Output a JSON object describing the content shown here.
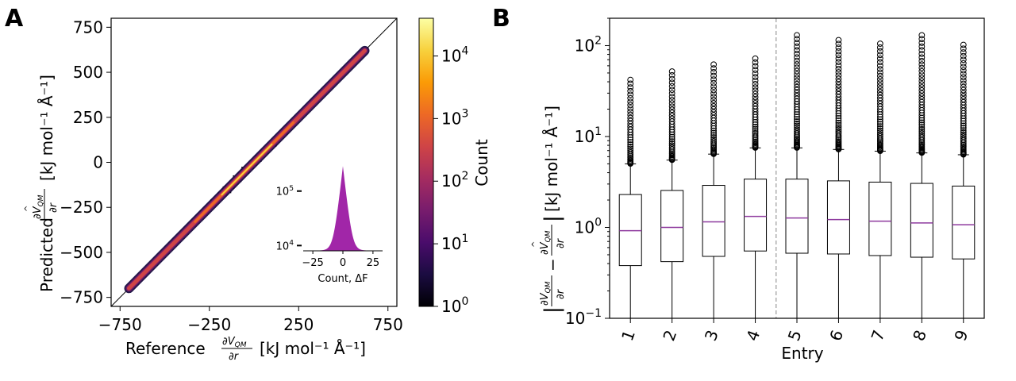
{
  "figure": {
    "panel_a": "A",
    "panel_b": "B"
  },
  "colors": {
    "inferno": [
      "#000004",
      "#1b0c41",
      "#4a0c6b",
      "#781c6d",
      "#a52c60",
      "#cf4446",
      "#ed6925",
      "#fb9b06",
      "#f7d13d",
      "#fcffa4"
    ],
    "violin": "#a126a8",
    "median": "#8e3a9e",
    "dashed": "#9a9a9a"
  },
  "labels": {
    "a_xlabel_prefix": "Reference",
    "a_xlabel_suffix": "[kJ mol⁻¹ Å⁻¹]",
    "a_ylabel_prefix": "Predicted",
    "a_ylabel_suffix": "[kJ mol⁻¹ Å⁻¹]",
    "frac_num_a": "∂V",
    "frac_sub": "QM",
    "frac_den": "∂r",
    "hat": "^",
    "colorbar_label": "Count",
    "b_xlabel": "Entry",
    "b_ylabel_suffix": "[kJ mol⁻¹ Å⁻¹]",
    "minus": "−",
    "bar": "|",
    "inset_xlabel": "Count, ΔF"
  },
  "chart_data": [
    {
      "type": "heatmap",
      "panel": "A",
      "description_text": "parity hexbin",
      "xlabel": "Reference ∂V_QM/∂r [kJ mol⁻¹ Å⁻¹]",
      "ylabel": "Predicted ∂V̂_QM/∂r [kJ mol⁻¹ Å⁻¹]",
      "xlim": [
        -800,
        800
      ],
      "ylim": [
        -800,
        800
      ],
      "xticks": [
        -750,
        -250,
        250,
        750
      ],
      "xtick_labels": [
        "−750",
        "−250",
        "250",
        "750"
      ],
      "yticks": [
        750,
        500,
        250,
        0,
        -250,
        -500,
        -750
      ],
      "ytick_labels": [
        "750",
        "500",
        "250",
        "0",
        "−250",
        "−500",
        "−750"
      ],
      "diagonal": [
        [
          -800,
          -800
        ],
        [
          800,
          800
        ]
      ],
      "data_range": [
        -700,
        620
      ],
      "colorbar": {
        "label": "Count",
        "scale": "log",
        "range": [
          1,
          40000
        ],
        "ticks": [
          1,
          10,
          100,
          1000,
          10000
        ],
        "tick_base": "10",
        "tick_exponents": [
          "0",
          "1",
          "2",
          "3",
          "4"
        ]
      }
    },
    {
      "type": "area",
      "panel": "A-inset",
      "xlabel": "Count, ΔF",
      "xticks": [
        -25,
        0,
        25
      ],
      "xtick_labels": [
        "−25",
        "0",
        "25"
      ],
      "xlim": [
        -33,
        33
      ],
      "ylim": [
        8000,
        300000
      ],
      "yscale": "log",
      "yticks": [
        10000,
        100000
      ],
      "ytick_base": "10",
      "ytick_exponents": [
        "4",
        "5"
      ],
      "distribution": "sharp peak centred at 0"
    },
    {
      "type": "box",
      "panel": "B",
      "categories": [
        "1",
        "2",
        "3",
        "4",
        "5",
        "6",
        "7",
        "8",
        "9"
      ],
      "xlabel": "Entry",
      "ylabel": "|∂V_QM/∂r − ∂V̂_QM/∂r| [kJ mol⁻¹ Å⁻¹]",
      "yscale": "log",
      "ylim": [
        0.1,
        200
      ],
      "yticks": [
        0.1,
        1,
        10,
        100
      ],
      "ytick_base": "10",
      "ytick_exponents": [
        "−1",
        "0",
        "1",
        "2"
      ],
      "divider_after_entry": "4",
      "stats": [
        {
          "entry": "1",
          "whisker_low": 0.1,
          "q1": 0.38,
          "median": 0.92,
          "q3": 2.3,
          "whisker_high": 5.0,
          "flier_max": 42
        },
        {
          "entry": "2",
          "whisker_low": 0.1,
          "q1": 0.42,
          "median": 1.0,
          "q3": 2.55,
          "whisker_high": 5.5,
          "flier_max": 52
        },
        {
          "entry": "3",
          "whisker_low": 0.1,
          "q1": 0.48,
          "median": 1.15,
          "q3": 2.9,
          "whisker_high": 6.4,
          "flier_max": 62
        },
        {
          "entry": "4",
          "whisker_low": 0.1,
          "q1": 0.55,
          "median": 1.32,
          "q3": 3.4,
          "whisker_high": 7.5,
          "flier_max": 72
        },
        {
          "entry": "5",
          "whisker_low": 0.1,
          "q1": 0.52,
          "median": 1.27,
          "q3": 3.4,
          "whisker_high": 7.5,
          "flier_max": 130
        },
        {
          "entry": "6",
          "whisker_low": 0.1,
          "q1": 0.51,
          "median": 1.22,
          "q3": 3.25,
          "whisker_high": 7.2,
          "flier_max": 115
        },
        {
          "entry": "7",
          "whisker_low": 0.1,
          "q1": 0.49,
          "median": 1.17,
          "q3": 3.15,
          "whisker_high": 6.9,
          "flier_max": 105
        },
        {
          "entry": "8",
          "whisker_low": 0.1,
          "q1": 0.47,
          "median": 1.12,
          "q3": 3.05,
          "whisker_high": 6.6,
          "flier_max": 130
        },
        {
          "entry": "9",
          "whisker_low": 0.1,
          "q1": 0.45,
          "median": 1.07,
          "q3": 2.85,
          "whisker_high": 6.3,
          "flier_max": 102
        }
      ]
    }
  ]
}
